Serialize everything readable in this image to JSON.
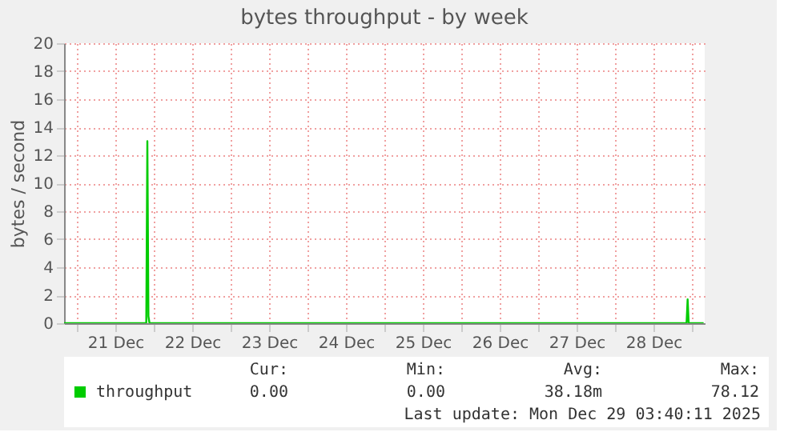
{
  "chart_data": {
    "type": "line",
    "title": "bytes throughput - by week",
    "ylabel": "bytes / second",
    "x": [
      "2025-12-20T20:00",
      "2025-12-21T21:40",
      "2025-12-21T22:00",
      "2025-12-21T22:20",
      "2025-12-21T22:40",
      "2025-12-28T22:20",
      "2025-12-28T22:40",
      "2025-12-28T23:00",
      "2025-12-29T03:40"
    ],
    "series": [
      {
        "name": "throughput",
        "color": "#00cc00",
        "values": [
          0,
          0,
          13,
          0.5,
          0,
          0,
          1.7,
          0,
          0
        ]
      }
    ],
    "xlim": [
      "2025-12-20T20:00",
      "2025-12-29T04:00"
    ],
    "xticks": [
      {
        "value": "2025-12-21T00:00",
        "label": null
      },
      {
        "value": "2025-12-21T12:00",
        "label": "21 Dec"
      },
      {
        "value": "2025-12-22T00:00",
        "label": null
      },
      {
        "value": "2025-12-22T12:00",
        "label": "22 Dec"
      },
      {
        "value": "2025-12-23T00:00",
        "label": null
      },
      {
        "value": "2025-12-23T12:00",
        "label": "23 Dec"
      },
      {
        "value": "2025-12-24T00:00",
        "label": null
      },
      {
        "value": "2025-12-24T12:00",
        "label": "24 Dec"
      },
      {
        "value": "2025-12-25T00:00",
        "label": null
      },
      {
        "value": "2025-12-25T12:00",
        "label": "25 Dec"
      },
      {
        "value": "2025-12-26T00:00",
        "label": null
      },
      {
        "value": "2025-12-26T12:00",
        "label": "26 Dec"
      },
      {
        "value": "2025-12-27T00:00",
        "label": null
      },
      {
        "value": "2025-12-27T12:00",
        "label": "27 Dec"
      },
      {
        "value": "2025-12-28T00:00",
        "label": null
      },
      {
        "value": "2025-12-28T12:00",
        "label": "28 Dec"
      },
      {
        "value": "2025-12-29T00:00",
        "label": null
      }
    ],
    "ylim": [
      0,
      20
    ],
    "yticks": [
      0,
      2,
      4,
      6,
      8,
      10,
      12,
      14,
      16,
      18,
      20
    ],
    "grid": true,
    "legend": "bottom",
    "marker": "none",
    "line_style": "solid",
    "annotations": [
      "Cur:",
      "Min:",
      "Avg:",
      "Max:",
      "0.00",
      "0.00",
      "38.18m",
      "78.12",
      "Last update: Mon Dec 29 03:40:11 2025"
    ]
  }
}
